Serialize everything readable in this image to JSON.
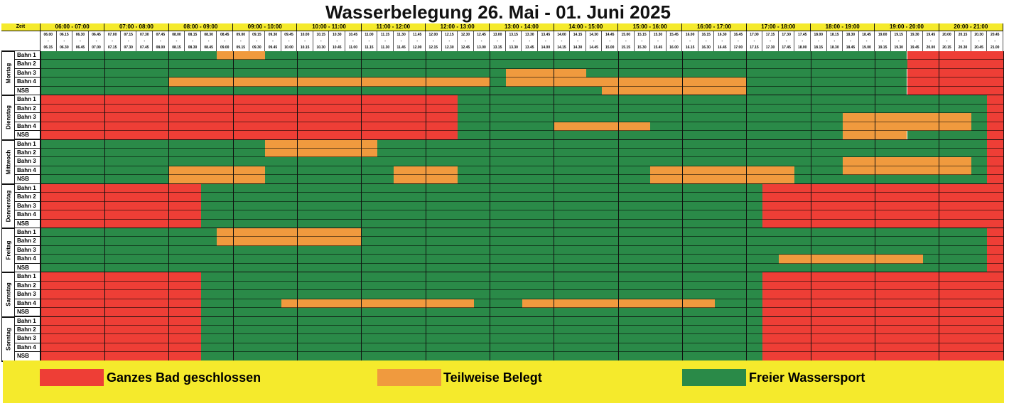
{
  "title": "Wasserbelegung 26. Mai - 01. Juni 2025",
  "zeit_label": "Zeit",
  "hours": [
    "06:00 - 07:00",
    "07:00 - 08:00",
    "08:00 - 09:00",
    "09:00 - 10:00",
    "10:00 - 11:00",
    "11:00 - 12:00",
    "12:00 - 13:00",
    "13:00 - 14:00",
    "14:00 - 15:00",
    "15:00 - 16:00",
    "16:00 - 17:00",
    "17:00 - 18:00",
    "18:00 - 19:00",
    "19:00 - 20:00",
    "20:00 - 21:00"
  ],
  "slot_starts": [
    "06.00",
    "06.15",
    "06.30",
    "06.45",
    "07.00",
    "07.15",
    "07.30",
    "07.45",
    "08.00",
    "08.15",
    "08.30",
    "08.45",
    "09.00",
    "09.15",
    "09.30",
    "09.45",
    "10.00",
    "10.15",
    "10.30",
    "10.45",
    "11.00",
    "11.15",
    "11.30",
    "11.45",
    "12.00",
    "12.15",
    "12.30",
    "12.45",
    "13.00",
    "13.15",
    "13.30",
    "13.45",
    "14.00",
    "14.15",
    "14.30",
    "14.45",
    "15.00",
    "15.15",
    "15.30",
    "15.45",
    "16.00",
    "16.15",
    "16.30",
    "16.45",
    "17.00",
    "17.15",
    "17.30",
    "17.45",
    "18.00",
    "18.15",
    "18.30",
    "18.45",
    "19.00",
    "19.15",
    "19.30",
    "19.45",
    "20.00",
    "20.15",
    "20.30",
    "20.45"
  ],
  "slot_ends": [
    "06.15",
    "06.30",
    "06.45",
    "07.00",
    "07.15",
    "07.30",
    "07.45",
    "08.00",
    "08.15",
    "08.30",
    "08.45",
    "09.00",
    "09.15",
    "09.30",
    "09.45",
    "10.00",
    "10.15",
    "10.30",
    "10.45",
    "11.00",
    "11.15",
    "11.30",
    "11.45",
    "12.00",
    "12.15",
    "12.30",
    "12.45",
    "13.00",
    "13.15",
    "13.30",
    "13.45",
    "14.00",
    "14.15",
    "14.30",
    "14.45",
    "15.00",
    "15.15",
    "15.30",
    "15.45",
    "16.00",
    "16.15",
    "16.30",
    "16.45",
    "17.00",
    "17.15",
    "17.30",
    "17.45",
    "18.00",
    "18.15",
    "18.30",
    "18.45",
    "19.00",
    "19.15",
    "19.30",
    "19.45",
    "20.00",
    "20.15",
    "20.30",
    "20.45",
    "21.00"
  ],
  "lanes": [
    "Bahn 1",
    "Bahn 2",
    "Bahn 3",
    "Bahn 4",
    "NSB"
  ],
  "colors": {
    "R": "#ee3e36",
    "O": "#f09a3e",
    "G": "#2a8a48"
  },
  "days": [
    {
      "name": "Montag",
      "rows": [
        [
          [
            0,
            11,
            "G"
          ],
          [
            11,
            14,
            "O"
          ],
          [
            14,
            54,
            "G"
          ],
          [
            54,
            60,
            "R"
          ]
        ],
        [
          [
            0,
            54,
            "G"
          ],
          [
            54,
            60,
            "R"
          ]
        ],
        [
          [
            0,
            29,
            "G"
          ],
          [
            29,
            34,
            "O"
          ],
          [
            34,
            54,
            "G"
          ],
          [
            54,
            60,
            "R"
          ]
        ],
        [
          [
            0,
            8,
            "G"
          ],
          [
            8,
            28,
            "O"
          ],
          [
            28,
            29,
            "G"
          ],
          [
            29,
            44,
            "O"
          ],
          [
            44,
            54,
            "G"
          ],
          [
            54,
            60,
            "R"
          ]
        ],
        [
          [
            0,
            35,
            "G"
          ],
          [
            35,
            44,
            "O"
          ],
          [
            44,
            54,
            "G"
          ],
          [
            54,
            60,
            "R"
          ]
        ]
      ]
    },
    {
      "name": "Dienstag",
      "rows": [
        [
          [
            0,
            26,
            "R"
          ],
          [
            26,
            59,
            "G"
          ],
          [
            59,
            60,
            "R"
          ]
        ],
        [
          [
            0,
            26,
            "R"
          ],
          [
            26,
            59,
            "G"
          ],
          [
            59,
            60,
            "R"
          ]
        ],
        [
          [
            0,
            26,
            "R"
          ],
          [
            26,
            50,
            "G"
          ],
          [
            50,
            58,
            "O"
          ],
          [
            58,
            59,
            "G"
          ],
          [
            59,
            60,
            "R"
          ]
        ],
        [
          [
            0,
            26,
            "R"
          ],
          [
            26,
            32,
            "G"
          ],
          [
            32,
            38,
            "O"
          ],
          [
            38,
            50,
            "G"
          ],
          [
            50,
            58,
            "O"
          ],
          [
            58,
            59,
            "G"
          ],
          [
            59,
            60,
            "R"
          ]
        ],
        [
          [
            0,
            26,
            "R"
          ],
          [
            26,
            50,
            "G"
          ],
          [
            50,
            54,
            "O"
          ],
          [
            54,
            59,
            "G"
          ],
          [
            59,
            60,
            "R"
          ]
        ]
      ]
    },
    {
      "name": "Mittwoch",
      "rows": [
        [
          [
            0,
            14,
            "G"
          ],
          [
            14,
            21,
            "O"
          ],
          [
            21,
            59,
            "G"
          ],
          [
            59,
            60,
            "R"
          ]
        ],
        [
          [
            0,
            14,
            "G"
          ],
          [
            14,
            21,
            "O"
          ],
          [
            21,
            59,
            "G"
          ],
          [
            59,
            60,
            "R"
          ]
        ],
        [
          [
            0,
            50,
            "G"
          ],
          [
            50,
            58,
            "O"
          ],
          [
            58,
            59,
            "G"
          ],
          [
            59,
            60,
            "R"
          ]
        ],
        [
          [
            0,
            8,
            "G"
          ],
          [
            8,
            14,
            "O"
          ],
          [
            14,
            22,
            "G"
          ],
          [
            22,
            26,
            "O"
          ],
          [
            26,
            38,
            "G"
          ],
          [
            38,
            47,
            "O"
          ],
          [
            47,
            50,
            "G"
          ],
          [
            50,
            58,
            "O"
          ],
          [
            58,
            59,
            "G"
          ],
          [
            59,
            60,
            "R"
          ]
        ],
        [
          [
            0,
            8,
            "G"
          ],
          [
            8,
            14,
            "O"
          ],
          [
            14,
            22,
            "G"
          ],
          [
            22,
            26,
            "O"
          ],
          [
            26,
            38,
            "G"
          ],
          [
            38,
            47,
            "O"
          ],
          [
            47,
            59,
            "G"
          ],
          [
            59,
            60,
            "R"
          ]
        ]
      ]
    },
    {
      "name": "Donnerstag",
      "rows": [
        [
          [
            0,
            10,
            "R"
          ],
          [
            10,
            45,
            "G"
          ],
          [
            45,
            60,
            "R"
          ]
        ],
        [
          [
            0,
            10,
            "R"
          ],
          [
            10,
            45,
            "G"
          ],
          [
            45,
            60,
            "R"
          ]
        ],
        [
          [
            0,
            10,
            "R"
          ],
          [
            10,
            45,
            "G"
          ],
          [
            45,
            60,
            "R"
          ]
        ],
        [
          [
            0,
            10,
            "R"
          ],
          [
            10,
            45,
            "G"
          ],
          [
            45,
            60,
            "R"
          ]
        ],
        [
          [
            0,
            10,
            "R"
          ],
          [
            10,
            45,
            "G"
          ],
          [
            45,
            60,
            "R"
          ]
        ]
      ]
    },
    {
      "name": "Freitag",
      "rows": [
        [
          [
            0,
            11,
            "G"
          ],
          [
            11,
            20,
            "O"
          ],
          [
            20,
            59,
            "G"
          ],
          [
            59,
            60,
            "R"
          ]
        ],
        [
          [
            0,
            11,
            "G"
          ],
          [
            11,
            20,
            "O"
          ],
          [
            20,
            59,
            "G"
          ],
          [
            59,
            60,
            "R"
          ]
        ],
        [
          [
            0,
            59,
            "G"
          ],
          [
            59,
            60,
            "R"
          ]
        ],
        [
          [
            0,
            46,
            "G"
          ],
          [
            46,
            55,
            "O"
          ],
          [
            55,
            59,
            "G"
          ],
          [
            59,
            60,
            "R"
          ]
        ],
        [
          [
            0,
            59,
            "G"
          ],
          [
            59,
            60,
            "R"
          ]
        ]
      ]
    },
    {
      "name": "Samstag",
      "rows": [
        [
          [
            0,
            10,
            "R"
          ],
          [
            10,
            45,
            "G"
          ],
          [
            45,
            60,
            "R"
          ]
        ],
        [
          [
            0,
            10,
            "R"
          ],
          [
            10,
            45,
            "G"
          ],
          [
            45,
            60,
            "R"
          ]
        ],
        [
          [
            0,
            10,
            "R"
          ],
          [
            10,
            45,
            "G"
          ],
          [
            45,
            60,
            "R"
          ]
        ],
        [
          [
            0,
            10,
            "R"
          ],
          [
            10,
            15,
            "G"
          ],
          [
            15,
            27,
            "O"
          ],
          [
            27,
            30,
            "G"
          ],
          [
            30,
            42,
            "O"
          ],
          [
            42,
            45,
            "G"
          ],
          [
            45,
            60,
            "R"
          ]
        ],
        [
          [
            0,
            10,
            "R"
          ],
          [
            10,
            45,
            "G"
          ],
          [
            45,
            60,
            "R"
          ]
        ]
      ]
    },
    {
      "name": "Sonntag",
      "rows": [
        [
          [
            0,
            10,
            "R"
          ],
          [
            10,
            45,
            "G"
          ],
          [
            45,
            60,
            "R"
          ]
        ],
        [
          [
            0,
            10,
            "R"
          ],
          [
            10,
            45,
            "G"
          ],
          [
            45,
            60,
            "R"
          ]
        ],
        [
          [
            0,
            10,
            "R"
          ],
          [
            10,
            45,
            "G"
          ],
          [
            45,
            60,
            "R"
          ]
        ],
        [
          [
            0,
            10,
            "R"
          ],
          [
            10,
            45,
            "G"
          ],
          [
            45,
            60,
            "R"
          ]
        ],
        [
          [
            0,
            10,
            "R"
          ],
          [
            10,
            45,
            "G"
          ],
          [
            45,
            60,
            "R"
          ]
        ]
      ]
    }
  ],
  "legend": [
    {
      "label": "Ganzes Bad geschlossen",
      "color": "#ee3e36"
    },
    {
      "label": "Teilweise Belegt",
      "color": "#f09a3e"
    },
    {
      "label": "Freier Wassersport",
      "color": "#2a8a48"
    }
  ]
}
